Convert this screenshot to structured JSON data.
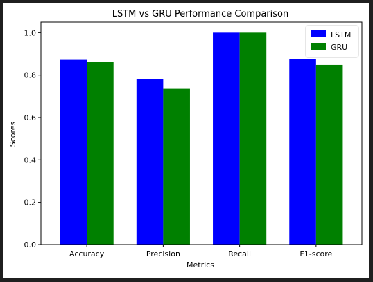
{
  "chart_data": {
    "type": "bar",
    "title": "LSTM vs GRU Performance Comparison",
    "xlabel": "Metrics",
    "ylabel": "Scores",
    "categories": [
      "Accuracy",
      "Precision",
      "Recall",
      "F1-score"
    ],
    "series": [
      {
        "name": "LSTM",
        "color": "#0000ff",
        "values": [
          0.872,
          0.782,
          1.0,
          0.877
        ]
      },
      {
        "name": "GRU",
        "color": "#008000",
        "values": [
          0.861,
          0.735,
          1.0,
          0.848
        ]
      }
    ],
    "ylim": [
      0,
      1.05
    ],
    "yticks": [
      "0.0",
      "0.2",
      "0.4",
      "0.6",
      "0.8",
      "1.0"
    ],
    "grid": false,
    "legend_position": "top-right"
  }
}
